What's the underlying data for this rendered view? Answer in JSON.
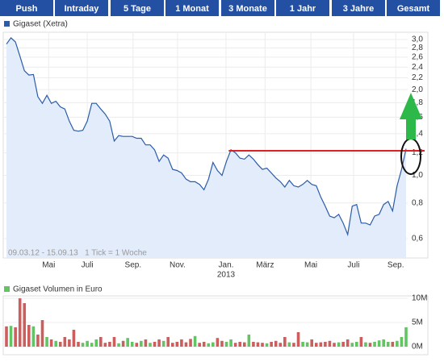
{
  "tabs": [
    "Push",
    "Intraday",
    "5 Tage",
    "1 Monat",
    "3 Monate",
    "1 Jahr",
    "3 Jahre",
    "Gesamt"
  ],
  "chart_data": [
    {
      "type": "line",
      "legend": "Gigaset (Xetra)",
      "color": "#2a5caa",
      "fill": "#e3ecfa",
      "log": true,
      "grid": true,
      "note": "09.03.12 - 15.09.13   1 Tick = 1 Woche",
      "values": [
        2.89,
        3.04,
        2.94,
        2.62,
        2.33,
        2.25,
        2.26,
        1.89,
        1.79,
        1.91,
        1.79,
        1.82,
        1.74,
        1.71,
        1.55,
        1.44,
        1.43,
        1.44,
        1.55,
        1.79,
        1.79,
        1.71,
        1.64,
        1.55,
        1.32,
        1.38,
        1.37,
        1.37,
        1.37,
        1.35,
        1.35,
        1.28,
        1.28,
        1.23,
        1.12,
        1.18,
        1.15,
        1.05,
        1.04,
        1.02,
        0.97,
        0.95,
        0.95,
        0.93,
        0.89,
        0.97,
        1.11,
        1.04,
        1.0,
        1.12,
        1.23,
        1.2,
        1.15,
        1.14,
        1.18,
        1.14,
        1.09,
        1.05,
        1.06,
        1.02,
        0.98,
        0.95,
        0.91,
        0.96,
        0.92,
        0.91,
        0.93,
        0.96,
        0.93,
        0.92,
        0.84,
        0.78,
        0.72,
        0.71,
        0.73,
        0.68,
        0.62,
        0.78,
        0.79,
        0.68,
        0.68,
        0.67,
        0.72,
        0.73,
        0.79,
        0.81,
        0.75,
        0.92,
        1.05,
        1.24
      ],
      "xlim": [
        0,
        89
      ],
      "xticks": [
        {
          "value": 9.4,
          "label": "Mai"
        },
        {
          "value": 18,
          "label": "Juli"
        },
        {
          "value": 28.2,
          "label": "Sep."
        },
        {
          "value": 38.1,
          "label": "Nov."
        },
        {
          "value": 48.9,
          "label": "Jan."
        },
        {
          "value": 57.6,
          "label": "März"
        },
        {
          "value": 67.8,
          "label": "Mai"
        },
        {
          "value": 77.3,
          "label": "Juli"
        },
        {
          "value": 86.7,
          "label": "Sep."
        }
      ],
      "x_sublabels": [
        {
          "value": 48.9,
          "label": "2013"
        }
      ],
      "ylim": [
        0.513,
        3.18
      ],
      "yticks": [
        {
          "value": 0.6,
          "label": "0,6"
        },
        {
          "value": 0.8,
          "label": "0,8"
        },
        {
          "value": 1,
          "label": "1,0"
        },
        {
          "value": 1.2,
          "label": "1,2"
        },
        {
          "value": 1.4,
          "label": "1,4"
        },
        {
          "value": 1.6,
          "label": "1,6"
        },
        {
          "value": 1.8,
          "label": "1,8"
        },
        {
          "value": 2,
          "label": "2,0"
        },
        {
          "value": 2.2,
          "label": "2,2"
        },
        {
          "value": 2.4,
          "label": "2,4"
        },
        {
          "value": 2.6,
          "label": "2,6"
        },
        {
          "value": 2.8,
          "label": "2,8"
        },
        {
          "value": 3,
          "label": "3,0"
        }
      ],
      "reference_line": {
        "value": 1.22,
        "x": 49.5,
        "color": "#e02020"
      }
    },
    {
      "type": "bar",
      "legend": "Gigaset Volumen in Euro",
      "up_color": "#62c462",
      "down_color": "#cc5e5e",
      "legend_color": "#62c462",
      "values": [
        4.2,
        4.3,
        4.0,
        10.0,
        9.0,
        4.5,
        4.2,
        2.5,
        5.5,
        2.0,
        1.5,
        1.2,
        1.0,
        2.0,
        1.5,
        3.5,
        1.0,
        0.8,
        1.2,
        0.8,
        1.5,
        2.0,
        0.8,
        1.0,
        2.0,
        0.7,
        1.2,
        1.8,
        1.0,
        0.8,
        1.2,
        1.5,
        0.8,
        1.0,
        1.5,
        1.2,
        2.0,
        0.8,
        1.0,
        1.5,
        0.9,
        1.6,
        2.2,
        0.8,
        1.0,
        0.7,
        0.9,
        1.8,
        1.2,
        1.0,
        1.5,
        0.8,
        1.0,
        0.9,
        2.5,
        1.0,
        0.9,
        0.8,
        0.7,
        1.0,
        1.2,
        0.8,
        2.0,
        0.9,
        0.8,
        3.0,
        1.0,
        0.9,
        1.5,
        0.8,
        0.9,
        1.0,
        1.2,
        0.8,
        0.9,
        1.0,
        1.5,
        0.8,
        1.0,
        2.0,
        0.9,
        0.8,
        1.0,
        1.3,
        1.5,
        1.0,
        1.0,
        1.2,
        2.0,
        4.0
      ],
      "xlim": [
        0,
        89
      ],
      "ylim": [
        0,
        10.5
      ],
      "yticks": [
        {
          "value": 0,
          "label": "0M"
        },
        {
          "value": 5,
          "label": "5M"
        },
        {
          "value": 10,
          "label": "10M"
        }
      ]
    }
  ]
}
